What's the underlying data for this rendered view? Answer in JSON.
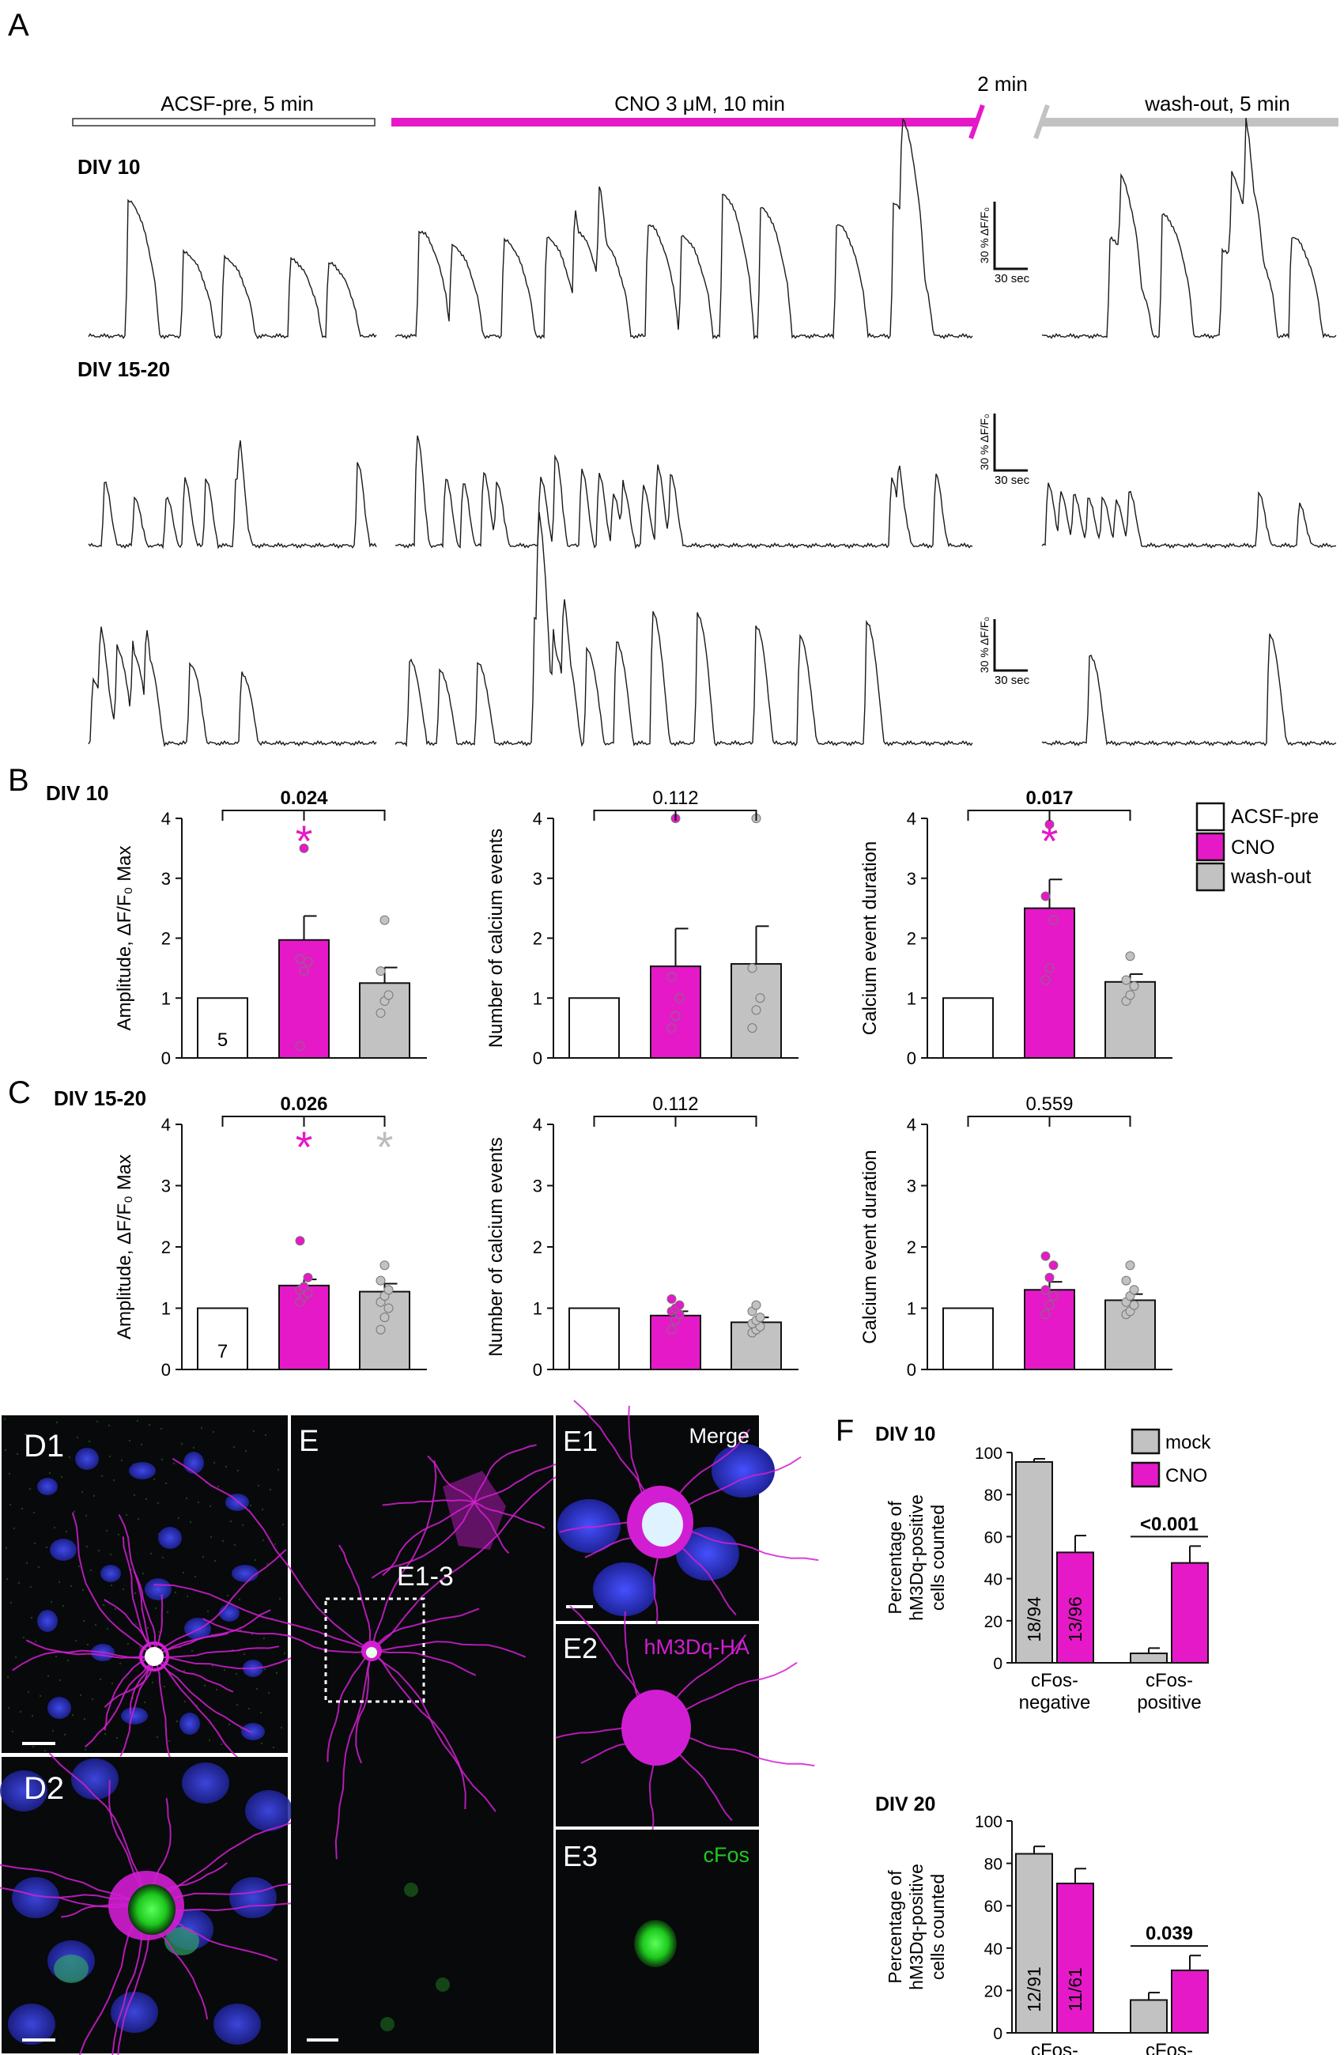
{
  "panel_letters": [
    "A",
    "B",
    "C",
    "D1",
    "D2",
    "E",
    "E1",
    "E2",
    "E3",
    "F"
  ],
  "colors": {
    "cno": "#e619c8",
    "washout": "#c2c2c2",
    "acsf": "#ffffff",
    "trace": "#1a1a1a",
    "hm3dq_signal": "#d21ed2",
    "nuclei_signal": "#2d32e1",
    "cfos_signal": "#1ec81e"
  },
  "panelA": {
    "phases": [
      {
        "label": "ACSF-pre, 5 min",
        "color": "#ffffff"
      },
      {
        "label": "CNO 3 μM, 10 min",
        "color": "#e619c8"
      },
      {
        "label": "wash-out, 5 min",
        "color": "#c2c2c2"
      }
    ],
    "gap_label": "2 min",
    "row_labels": [
      "DIV 10",
      "DIV 15-20"
    ],
    "scalebar_y": "30 % ΔF/F₀",
    "scalebar_x": "30 sec"
  },
  "legendB": {
    "items": [
      {
        "label": "ACSF-pre",
        "color": "#ffffff"
      },
      {
        "label": "CNO",
        "color": "#e619c8"
      },
      {
        "label": "wash-out",
        "color": "#c2c2c2"
      }
    ]
  },
  "legendF": {
    "items": [
      {
        "label": "mock",
        "color": "#c2c2c2"
      },
      {
        "label": "CNO",
        "color": "#e619c8"
      }
    ]
  },
  "micrographs": {
    "E1_label": "Merge",
    "E2_label": "hM3Dq-HA",
    "E3_label": "cFos",
    "E_inset_label": "E1-3"
  },
  "chart_data": [
    {
      "id": "B1",
      "type": "bar",
      "row_label": "DIV 10",
      "categories": [
        "ACSF-pre",
        "CNO",
        "wash-out"
      ],
      "values": [
        1.0,
        1.97,
        1.25
      ],
      "errors": [
        0,
        0.4,
        0.26
      ],
      "points": [
        [],
        [
          0.2,
          1.45,
          1.6,
          1.65,
          3.5
        ],
        [
          0.75,
          0.95,
          1.05,
          1.45,
          2.3
        ]
      ],
      "ylabel": "Amplitude, ΔF/F₀ Max",
      "ylim": [
        0,
        4
      ],
      "yticks": [
        0,
        1,
        2,
        3,
        4
      ],
      "n_label": "5",
      "p_value": "0.024",
      "p_bold": true,
      "stars": [
        {
          "category": "CNO",
          "color": "#e619c8"
        }
      ]
    },
    {
      "id": "B2",
      "type": "bar",
      "row_label": "",
      "categories": [
        "ACSF-pre",
        "CNO",
        "wash-out"
      ],
      "values": [
        1.0,
        1.53,
        1.57
      ],
      "errors": [
        0,
        0.63,
        0.63
      ],
      "points": [
        [],
        [
          0.5,
          0.7,
          1.0,
          1.35,
          4.0
        ],
        [
          0.5,
          0.8,
          1.0,
          1.5,
          4.0
        ]
      ],
      "ylabel": "Number of calcium events",
      "ylim": [
        0,
        4
      ],
      "yticks": [
        0,
        1,
        2,
        3,
        4
      ],
      "n_label": "",
      "p_value": "0.112",
      "p_bold": false,
      "stars": []
    },
    {
      "id": "B3",
      "type": "bar",
      "row_label": "",
      "categories": [
        "ACSF-pre",
        "CNO",
        "wash-out"
      ],
      "values": [
        1.0,
        2.5,
        1.27
      ],
      "errors": [
        0,
        0.48,
        0.13
      ],
      "points": [
        [],
        [
          1.3,
          1.5,
          2.3,
          2.7,
          3.9
        ],
        [
          0.95,
          1.05,
          1.2,
          1.3,
          1.7
        ]
      ],
      "ylabel": "Calcium event duration",
      "ylim": [
        0,
        4
      ],
      "yticks": [
        0,
        1,
        2,
        3,
        4
      ],
      "n_label": "",
      "p_value": "0.017",
      "p_bold": true,
      "stars": [
        {
          "category": "CNO",
          "color": "#e619c8"
        }
      ]
    },
    {
      "id": "C1",
      "type": "bar",
      "row_label": "DIV 15-20",
      "categories": [
        "ACSF-pre",
        "CNO",
        "wash-out"
      ],
      "values": [
        1.0,
        1.37,
        1.27
      ],
      "errors": [
        0,
        0.1,
        0.13
      ],
      "points": [
        [],
        [
          1.1,
          1.2,
          1.25,
          1.3,
          1.35,
          1.5,
          2.1
        ],
        [
          0.65,
          0.85,
          1.0,
          1.1,
          1.2,
          1.3,
          1.45,
          1.7
        ]
      ],
      "ylabel": "Amplitude, ΔF/F₀ Max",
      "ylim": [
        0,
        4
      ],
      "yticks": [
        0,
        1,
        2,
        3,
        4
      ],
      "n_label": "7",
      "p_value": "0.026",
      "p_bold": true,
      "stars": [
        {
          "category": "CNO",
          "color": "#e619c8"
        },
        {
          "category": "wash-out",
          "color": "#bdbdbd"
        }
      ]
    },
    {
      "id": "C2",
      "type": "bar",
      "row_label": "",
      "categories": [
        "ACSF-pre",
        "CNO",
        "wash-out"
      ],
      "values": [
        1.0,
        0.88,
        0.77
      ],
      "errors": [
        0,
        0.07,
        0.08
      ],
      "points": [
        [],
        [
          0.65,
          0.8,
          0.9,
          0.95,
          1.0,
          1.05,
          1.15
        ],
        [
          0.6,
          0.65,
          0.7,
          0.75,
          0.8,
          0.85,
          0.95,
          1.05
        ]
      ],
      "ylabel": "Number of calcium events",
      "ylim": [
        0,
        4
      ],
      "yticks": [
        0,
        1,
        2,
        3,
        4
      ],
      "n_label": "",
      "p_value": "0.112",
      "p_bold": false,
      "stars": []
    },
    {
      "id": "C3",
      "type": "bar",
      "row_label": "",
      "categories": [
        "ACSF-pre",
        "CNO",
        "wash-out"
      ],
      "values": [
        1.0,
        1.3,
        1.13
      ],
      "errors": [
        0,
        0.13,
        0.1
      ],
      "points": [
        [],
        [
          0.9,
          1.05,
          1.2,
          1.3,
          1.5,
          1.7,
          1.85
        ],
        [
          0.9,
          0.95,
          1.05,
          1.1,
          1.2,
          1.3,
          1.45,
          1.7
        ]
      ],
      "ylabel": "Calcium event duration",
      "ylim": [
        0,
        4
      ],
      "yticks": [
        0,
        1,
        2,
        3,
        4
      ],
      "n_label": "",
      "p_value": "0.559",
      "p_bold": false,
      "stars": []
    },
    {
      "id": "F1",
      "type": "bar",
      "row_label": "DIV 10",
      "groups": [
        "cFos-negative",
        "cFos-positive"
      ],
      "series": [
        {
          "name": "mock",
          "values": [
            95.5,
            4.5
          ],
          "errors": [
            1.5,
            2.5
          ],
          "inbar_label": "18/94"
        },
        {
          "name": "CNO",
          "values": [
            52.5,
            47.5
          ],
          "errors": [
            8.0,
            8.0
          ],
          "inbar_label": "13/96"
        }
      ],
      "ylabel": "Percentage of hM3Dq-positive cells counted",
      "ylim": [
        0,
        100
      ],
      "yticks": [
        0,
        20,
        40,
        60,
        80,
        100
      ],
      "p_value": "<0.001",
      "p_group": "cFos-positive"
    },
    {
      "id": "F2",
      "type": "bar",
      "row_label": "DIV 20",
      "groups": [
        "cFos-negative",
        "cFos-positive"
      ],
      "series": [
        {
          "name": "mock",
          "values": [
            84.5,
            15.5
          ],
          "errors": [
            3.5,
            3.5
          ],
          "inbar_label": "12/91"
        },
        {
          "name": "CNO",
          "values": [
            70.5,
            29.5
          ],
          "errors": [
            7.0,
            7.0
          ],
          "inbar_label": "11/61"
        }
      ],
      "ylabel": "Percentage of hM3Dq-positive cells counted",
      "ylim": [
        0,
        100
      ],
      "yticks": [
        0,
        20,
        40,
        60,
        80,
        100
      ],
      "p_value": "0.039",
      "p_group": "cFos-positive"
    }
  ]
}
